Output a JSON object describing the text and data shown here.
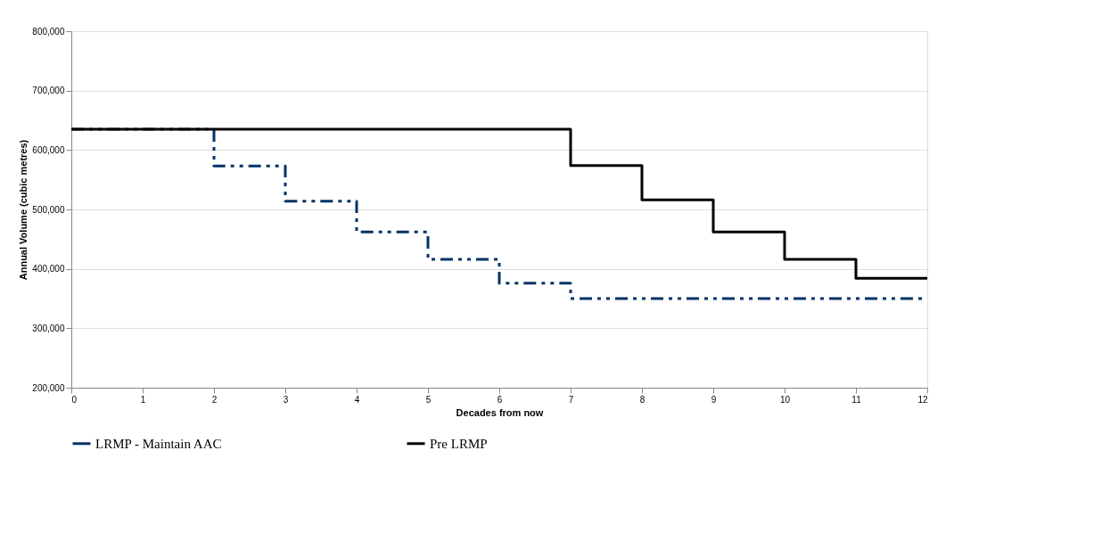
{
  "chart_data": {
    "type": "step",
    "xlabel": "Decades from now",
    "ylabel": "Annual Volume (cubic metres)",
    "x": [
      0,
      1,
      2,
      3,
      4,
      5,
      6,
      7,
      8,
      9,
      10,
      11,
      12
    ],
    "series": [
      {
        "name": "LRMP - Maintain AAC",
        "color": "#003366",
        "line_style": "dashed",
        "values": [
          635000,
          635000,
          573000,
          514000,
          462000,
          416000,
          376000,
          350000,
          350000,
          350000,
          350000,
          350000,
          350000
        ]
      },
      {
        "name": "Pre LRMP",
        "color": "#000000",
        "line_style": "solid",
        "values": [
          635000,
          635000,
          635000,
          635000,
          635000,
          635000,
          635000,
          574000,
          516000,
          462000,
          416000,
          384000,
          384000
        ]
      }
    ],
    "xlim": [
      0,
      12
    ],
    "xticks": [
      0,
      1,
      2,
      3,
      4,
      5,
      6,
      7,
      8,
      9,
      10,
      11,
      12
    ],
    "ylim": [
      200000,
      800000
    ],
    "yticks": [
      {
        "value": 200000,
        "label": "200,000"
      },
      {
        "value": 300000,
        "label": "300,000"
      },
      {
        "value": 400000,
        "label": "400,000"
      },
      {
        "value": 500000,
        "label": "500,000"
      },
      {
        "value": 600000,
        "label": "600,000"
      },
      {
        "value": 700000,
        "label": "700,000"
      },
      {
        "value": 800000,
        "label": "800,000"
      }
    ],
    "grid": "y",
    "legend": "bottom",
    "marker": "none"
  }
}
